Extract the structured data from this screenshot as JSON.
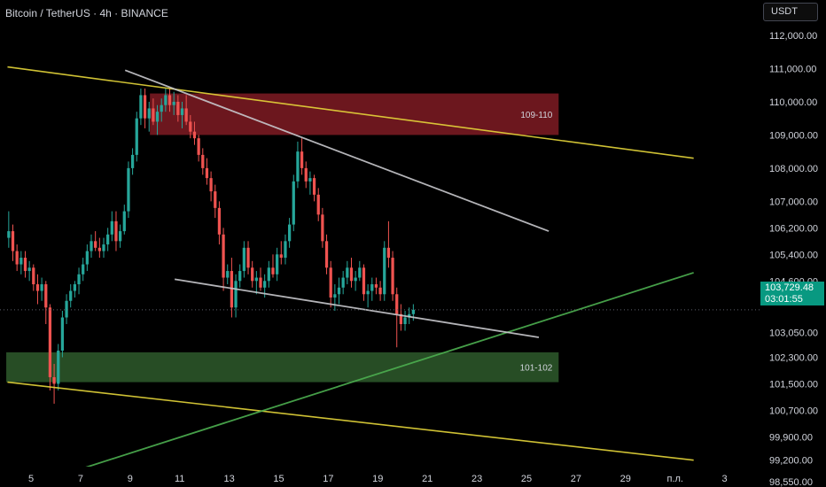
{
  "header": {
    "symbol_title": "Bitcoin / TetherUS · 4h · BINANCE"
  },
  "currency_button": {
    "label": "USDT"
  },
  "current_price": {
    "value": "103,729.48",
    "countdown": "03:01:55",
    "price": 103729.48
  },
  "colors": {
    "background": "#000000",
    "up": "#26a69a",
    "down": "#ef5350",
    "resistance_zone": "#7f1b23",
    "support_zone": "#2e5a2b",
    "channel": "#e5d63a",
    "trendline_green": "#4caf50",
    "trendline_white": "#c8c8cc",
    "price_tag": "#089981"
  },
  "chart_data": {
    "type": "candlestick",
    "timeframe": "4h",
    "ylim": [
      98300,
      112500
    ],
    "y_ticks": [
      {
        "label": "112,000.00",
        "value": 112000
      },
      {
        "label": "111,000.00",
        "value": 111000
      },
      {
        "label": "110,000.00",
        "value": 110000
      },
      {
        "label": "109,000.00",
        "value": 109000
      },
      {
        "label": "108,000.00",
        "value": 108000
      },
      {
        "label": "107,000.00",
        "value": 107000
      },
      {
        "label": "106,200.00",
        "value": 106200
      },
      {
        "label": "105,400.00",
        "value": 105400
      },
      {
        "label": "104,600.00",
        "value": 104600
      },
      {
        "label": "103,050.00",
        "value": 103050
      },
      {
        "label": "102,300.00",
        "value": 102300
      },
      {
        "label": "101,500.00",
        "value": 101500
      },
      {
        "label": "100,700.00",
        "value": 100700
      },
      {
        "label": "99,900.00",
        "value": 99900
      },
      {
        "label": "99,200.00",
        "value": 99200
      },
      {
        "label": "98,550.00",
        "value": 98550
      }
    ],
    "x_range": [
      4.05,
      4.2
    ],
    "x_ticks": [
      {
        "label": "5",
        "day": 5
      },
      {
        "label": "7",
        "day": 7
      },
      {
        "label": "9",
        "day": 9
      },
      {
        "label": "11",
        "day": 11
      },
      {
        "label": "13",
        "day": 13
      },
      {
        "label": "15",
        "day": 15
      },
      {
        "label": "17",
        "day": 17
      },
      {
        "label": "19",
        "day": 19
      },
      {
        "label": "21",
        "day": 21
      },
      {
        "label": "23",
        "day": 23
      },
      {
        "label": "25",
        "day": 25
      },
      {
        "label": "27",
        "day": 27
      },
      {
        "label": "29",
        "day": 29
      },
      {
        "label": "п.л.",
        "day": 31
      },
      {
        "label": "3",
        "day": 33
      }
    ],
    "candles_per_day": 6,
    "first_candle_day": 4.1,
    "candles": [
      [
        105900,
        106700,
        105600,
        106100
      ],
      [
        106100,
        106300,
        105200,
        105500
      ],
      [
        105500,
        105700,
        104900,
        105100
      ],
      [
        105100,
        105500,
        104800,
        105300
      ],
      [
        105300,
        105500,
        104700,
        104900
      ],
      [
        104900,
        105200,
        104600,
        105000
      ],
      [
        105000,
        105100,
        104300,
        104500
      ],
      [
        104500,
        104800,
        103900,
        104300
      ],
      [
        104300,
        104700,
        104000,
        104500
      ],
      [
        104500,
        104600,
        103300,
        103800
      ],
      [
        103800,
        103900,
        101300,
        101700
      ],
      [
        101700,
        102100,
        100900,
        101500
      ],
      [
        101500,
        102700,
        101300,
        102500
      ],
      [
        102500,
        103700,
        102300,
        103500
      ],
      [
        103500,
        104200,
        103300,
        104000
      ],
      [
        104000,
        104500,
        103800,
        104300
      ],
      [
        104300,
        104600,
        104100,
        104500
      ],
      [
        104500,
        105000,
        104200,
        104800
      ],
      [
        104800,
        105300,
        104600,
        105100
      ],
      [
        105100,
        105700,
        104900,
        105500
      ],
      [
        105500,
        106000,
        105300,
        105800
      ],
      [
        105800,
        106100,
        105500,
        105600
      ],
      [
        105600,
        105900,
        105300,
        105500
      ],
      [
        105500,
        105900,
        105300,
        105700
      ],
      [
        105700,
        106200,
        105500,
        106000
      ],
      [
        106000,
        106700,
        105800,
        106400
      ],
      [
        106400,
        106700,
        105500,
        105800
      ],
      [
        105800,
        106300,
        105600,
        106100
      ],
      [
        106100,
        106900,
        106000,
        106700
      ],
      [
        106700,
        108200,
        106500,
        108000
      ],
      [
        108000,
        108600,
        107800,
        108400
      ],
      [
        108400,
        109700,
        108200,
        109500
      ],
      [
        109500,
        110400,
        109300,
        110200
      ],
      [
        110200,
        110400,
        109200,
        109500
      ],
      [
        109500,
        110000,
        109100,
        109800
      ],
      [
        109800,
        110100,
        109300,
        109400
      ],
      [
        109400,
        109900,
        109000,
        109700
      ],
      [
        109700,
        110100,
        109400,
        109900
      ],
      [
        109900,
        110400,
        109700,
        110200
      ],
      [
        110200,
        110400,
        109700,
        109900
      ],
      [
        109900,
        110300,
        109600,
        110000
      ],
      [
        110000,
        110200,
        109400,
        109600
      ],
      [
        109600,
        110000,
        109200,
        109800
      ],
      [
        109800,
        110200,
        109300,
        109400
      ],
      [
        109400,
        109600,
        108900,
        109100
      ],
      [
        109100,
        109400,
        108700,
        108900
      ],
      [
        108900,
        109000,
        108200,
        108400
      ],
      [
        108400,
        108600,
        107800,
        108000
      ],
      [
        108000,
        108300,
        107500,
        107700
      ],
      [
        107700,
        107900,
        107000,
        107300
      ],
      [
        107300,
        107500,
        106500,
        106800
      ],
      [
        106800,
        107000,
        105700,
        106000
      ],
      [
        106000,
        106200,
        104300,
        104700
      ],
      [
        104700,
        105100,
        104500,
        104900
      ],
      [
        104900,
        105300,
        103500,
        103800
      ],
      [
        103800,
        104800,
        103500,
        104600
      ],
      [
        104600,
        105100,
        104400,
        104900
      ],
      [
        104900,
        105800,
        104700,
        105600
      ],
      [
        105600,
        105800,
        104800,
        105000
      ],
      [
        105000,
        105200,
        104400,
        104600
      ],
      [
        104600,
        104900,
        104200,
        104700
      ],
      [
        104700,
        105000,
        104300,
        104400
      ],
      [
        104400,
        104800,
        104100,
        104600
      ],
      [
        104600,
        105200,
        104400,
        105000
      ],
      [
        105000,
        105400,
        104700,
        104800
      ],
      [
        104800,
        105600,
        104600,
        105400
      ],
      [
        105400,
        105800,
        105100,
        105300
      ],
      [
        105300,
        106000,
        105100,
        105800
      ],
      [
        105800,
        106500,
        105600,
        106300
      ],
      [
        106300,
        107800,
        106100,
        107600
      ],
      [
        107600,
        108800,
        107400,
        108500
      ],
      [
        108500,
        108900,
        107800,
        108000
      ],
      [
        108000,
        108200,
        107400,
        107600
      ],
      [
        107600,
        107900,
        107200,
        107700
      ],
      [
        107700,
        107800,
        107000,
        107200
      ],
      [
        107200,
        107400,
        106400,
        106600
      ],
      [
        106600,
        106800,
        105600,
        105800
      ],
      [
        105800,
        106000,
        104800,
        105000
      ],
      [
        105000,
        105200,
        103800,
        104100
      ],
      [
        104100,
        104500,
        103700,
        104200
      ],
      [
        104200,
        104700,
        103900,
        104400
      ],
      [
        104400,
        104900,
        104200,
        104700
      ],
      [
        104700,
        105200,
        104500,
        105000
      ],
      [
        105000,
        105300,
        104400,
        104600
      ],
      [
        104600,
        104900,
        104300,
        104700
      ],
      [
        104700,
        105200,
        104600,
        105000
      ],
      [
        105000,
        105100,
        104000,
        104200
      ],
      [
        104200,
        104500,
        103800,
        104300
      ],
      [
        104300,
        104700,
        104000,
        104500
      ],
      [
        104500,
        104700,
        104200,
        104400
      ],
      [
        104400,
        104600,
        104000,
        104200
      ],
      [
        104200,
        105800,
        104000,
        105600
      ],
      [
        105600,
        106400,
        105000,
        105300
      ],
      [
        105300,
        105500,
        104000,
        104200
      ],
      [
        104200,
        104400,
        102600,
        103600
      ],
      [
        103600,
        103900,
        103100,
        103300
      ],
      [
        103300,
        103700,
        103100,
        103500
      ],
      [
        103500,
        103800,
        103300,
        103600
      ],
      [
        103600,
        103900,
        103400,
        103730
      ]
    ],
    "zones": [
      {
        "label": "109-110",
        "low": 109000,
        "high": 110250,
        "day_start": 9.8,
        "day_end": 26.3,
        "color": "#7f1b23"
      },
      {
        "label": "101-102",
        "low": 101550,
        "high": 102450,
        "day_start": 4.0,
        "day_end": 26.3,
        "color": "#2e5a2b"
      }
    ],
    "trendlines": [
      {
        "name": "channel-top",
        "p1": [
          4.05,
          111050
        ],
        "p2": [
          31.75,
          108300
        ],
        "color": "#e5d63a"
      },
      {
        "name": "channel-bottom",
        "p1": [
          4.05,
          101550
        ],
        "p2": [
          31.75,
          99200
        ],
        "color": "#e5d63a"
      },
      {
        "name": "support-rising",
        "p1": [
          5.2,
          98500
        ],
        "p2": [
          31.75,
          104850
        ],
        "color": "#4caf50"
      },
      {
        "name": "resistance-falling",
        "p1": [
          8.8,
          110950
        ],
        "p2": [
          25.9,
          106100
        ],
        "color": "#c8c8cc"
      },
      {
        "name": "support-falling",
        "p1": [
          10.8,
          104650
        ],
        "p2": [
          25.5,
          102900
        ],
        "color": "#c8c8cc"
      }
    ]
  }
}
